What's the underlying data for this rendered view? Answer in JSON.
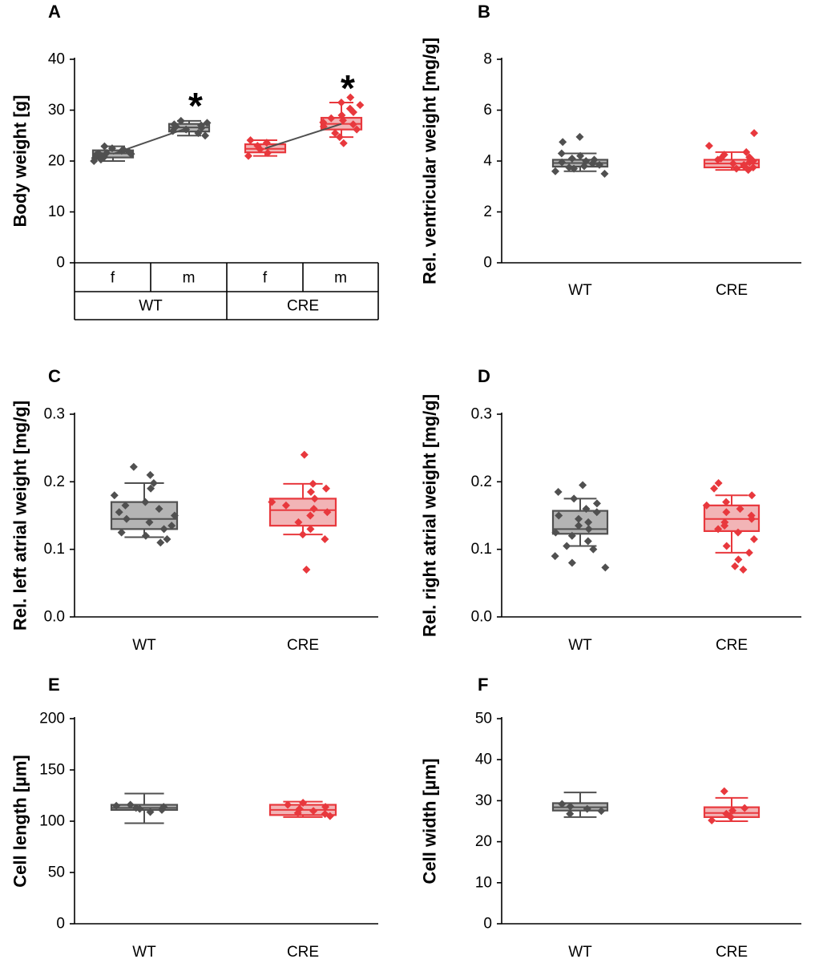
{
  "colors": {
    "wt": "#505050",
    "cre": "#e8383d",
    "wt_fill": "#b4b4b4",
    "cre_fill": "#f2b4b6"
  },
  "chart_data": [
    {
      "panel": "A",
      "type": "box",
      "ylabel": "Body weight [g]",
      "ylim": [
        0,
        40
      ],
      "yticks": [
        0,
        10,
        20,
        30,
        40
      ],
      "group_table": {
        "sex": [
          "f",
          "m",
          "f",
          "m"
        ],
        "genotype": [
          "WT",
          "CRE"
        ]
      },
      "significance": [
        "*",
        "*"
      ],
      "boxes": [
        {
          "name": "WT f",
          "color": "wt",
          "q1": 20.7,
          "median": 21.5,
          "q3": 22.1,
          "whisker_low": 20.0,
          "whisker_high": 22.9,
          "points": [
            20.0,
            20.3,
            20.6,
            20.8,
            21.0,
            21.2,
            21.4,
            21.5,
            21.6,
            21.8,
            22.0,
            22.2,
            22.5,
            22.9
          ]
        },
        {
          "name": "WT m",
          "color": "wt",
          "q1": 25.8,
          "median": 26.6,
          "q3": 27.3,
          "whisker_low": 25.0,
          "whisker_high": 27.9,
          "points": [
            25.0,
            25.5,
            25.9,
            26.2,
            26.5,
            26.8,
            27.0,
            27.2,
            27.5,
            27.9
          ]
        },
        {
          "name": "CRE f",
          "color": "cre",
          "q1": 21.7,
          "median": 22.4,
          "q3": 23.3,
          "whisker_low": 21.0,
          "whisker_high": 24.1,
          "points": [
            21.0,
            21.6,
            22.3,
            23.0,
            23.6,
            24.1
          ]
        },
        {
          "name": "CRE m",
          "color": "cre",
          "q1": 26.2,
          "median": 27.3,
          "q3": 28.5,
          "whisker_low": 24.7,
          "whisker_high": 31.5,
          "points": [
            23.5,
            24.7,
            25.5,
            26.2,
            26.8,
            27.2,
            27.6,
            28.0,
            28.4,
            29.0,
            29.6,
            30.3,
            31.0,
            31.5,
            32.5
          ]
        }
      ],
      "connect_means": [
        [
          21.4,
          26.6
        ],
        [
          22.5,
          27.3
        ]
      ]
    },
    {
      "panel": "B",
      "type": "box",
      "ylabel": "Rel. ventricular weight [mg/g]",
      "ylim": [
        0,
        8
      ],
      "yticks": [
        0,
        2,
        4,
        6,
        8
      ],
      "boxes": [
        {
          "name": "WT",
          "color": "wt",
          "q1": 3.78,
          "median": 3.92,
          "q3": 4.05,
          "whisker_low": 3.6,
          "whisker_high": 4.3,
          "points": [
            3.5,
            3.6,
            3.7,
            3.75,
            3.8,
            3.85,
            3.9,
            3.95,
            4.0,
            4.05,
            4.1,
            4.2,
            4.3,
            4.75,
            4.95
          ]
        },
        {
          "name": "CRE",
          "color": "cre",
          "q1": 3.75,
          "median": 3.9,
          "q3": 4.05,
          "whisker_low": 3.65,
          "whisker_high": 4.35,
          "points": [
            3.65,
            3.7,
            3.75,
            3.8,
            3.85,
            3.9,
            3.95,
            4.0,
            4.05,
            4.1,
            4.15,
            4.25,
            4.35,
            4.6,
            5.1
          ]
        }
      ]
    },
    {
      "panel": "C",
      "type": "box",
      "ylabel": "Rel. left atrial weight [mg/g]",
      "ylim": [
        0.0,
        0.3
      ],
      "yticks": [
        0.0,
        0.1,
        0.2,
        0.3
      ],
      "boxes": [
        {
          "name": "WT",
          "color": "wt",
          "q1": 0.13,
          "median": 0.145,
          "q3": 0.17,
          "whisker_low": 0.118,
          "whisker_high": 0.198,
          "points": [
            0.11,
            0.115,
            0.12,
            0.125,
            0.13,
            0.135,
            0.14,
            0.145,
            0.15,
            0.155,
            0.16,
            0.165,
            0.17,
            0.18,
            0.19,
            0.198,
            0.21,
            0.222
          ]
        },
        {
          "name": "CRE",
          "color": "cre",
          "q1": 0.135,
          "median": 0.158,
          "q3": 0.175,
          "whisker_low": 0.122,
          "whisker_high": 0.197,
          "points": [
            0.07,
            0.115,
            0.122,
            0.13,
            0.14,
            0.15,
            0.155,
            0.16,
            0.165,
            0.17,
            0.175,
            0.185,
            0.19,
            0.197,
            0.24
          ]
        }
      ]
    },
    {
      "panel": "D",
      "type": "box",
      "ylabel": "Rel. right atrial weight [mg/g]",
      "ylim": [
        0.0,
        0.3
      ],
      "yticks": [
        0.0,
        0.1,
        0.2,
        0.3
      ],
      "boxes": [
        {
          "name": "WT",
          "color": "wt",
          "q1": 0.123,
          "median": 0.13,
          "q3": 0.157,
          "whisker_low": 0.105,
          "whisker_high": 0.175,
          "points": [
            0.073,
            0.08,
            0.09,
            0.1,
            0.105,
            0.112,
            0.12,
            0.125,
            0.13,
            0.135,
            0.14,
            0.145,
            0.15,
            0.155,
            0.16,
            0.168,
            0.175,
            0.185,
            0.195
          ]
        },
        {
          "name": "CRE",
          "color": "cre",
          "q1": 0.127,
          "median": 0.145,
          "q3": 0.165,
          "whisker_low": 0.095,
          "whisker_high": 0.18,
          "points": [
            0.07,
            0.075,
            0.085,
            0.095,
            0.105,
            0.115,
            0.125,
            0.13,
            0.135,
            0.14,
            0.145,
            0.15,
            0.155,
            0.16,
            0.165,
            0.17,
            0.18,
            0.19,
            0.198
          ]
        }
      ]
    },
    {
      "panel": "E",
      "type": "box",
      "ylabel": "Cell length [µm]",
      "ylim": [
        0,
        200
      ],
      "yticks": [
        0,
        50,
        100,
        150,
        200
      ],
      "boxes": [
        {
          "name": "WT",
          "color": "wt",
          "q1": 111,
          "median": 113,
          "q3": 116,
          "whisker_low": 98,
          "whisker_high": 127,
          "points": [
            109,
            111,
            112,
            113,
            114,
            115,
            116
          ]
        },
        {
          "name": "CRE",
          "color": "cre",
          "q1": 106,
          "median": 111,
          "q3": 116,
          "whisker_low": 104,
          "whisker_high": 119,
          "points": [
            105,
            107,
            108,
            110,
            112,
            114,
            116,
            118
          ]
        }
      ]
    },
    {
      "panel": "F",
      "type": "box",
      "ylabel": "Cell width [µm]",
      "ylim": [
        0,
        50
      ],
      "yticks": [
        0,
        10,
        20,
        30,
        40,
        50
      ],
      "boxes": [
        {
          "name": "WT",
          "color": "wt",
          "q1": 27.6,
          "median": 28.4,
          "q3": 29.4,
          "whisker_low": 26.0,
          "whisker_high": 32.0,
          "points": [
            26.8,
            27.5,
            28.0,
            28.6,
            29.2
          ]
        },
        {
          "name": "CRE",
          "color": "cre",
          "q1": 26.0,
          "median": 27.0,
          "q3": 28.4,
          "whisker_low": 25.0,
          "whisker_high": 30.7,
          "points": [
            25.2,
            26.0,
            26.8,
            27.6,
            28.2,
            32.3
          ]
        }
      ]
    }
  ]
}
